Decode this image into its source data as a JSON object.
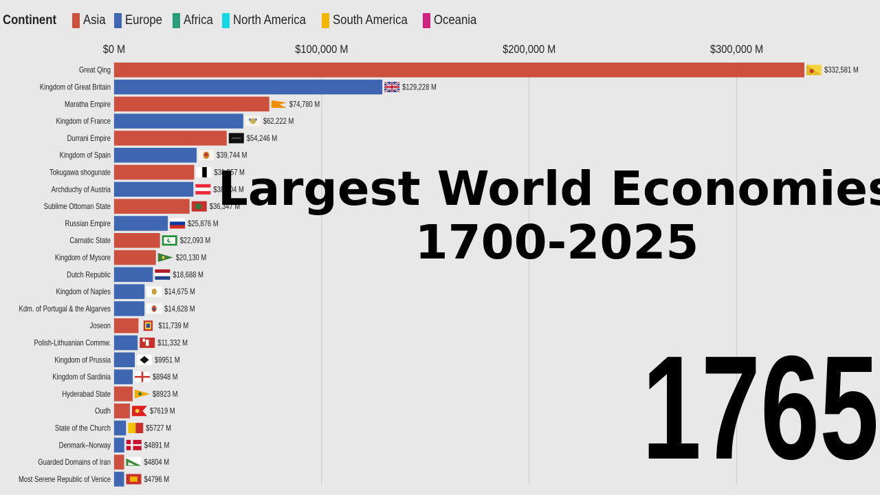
{
  "legend": {
    "title": "Continent",
    "items": [
      {
        "label": "Asia",
        "color": "#cd4f3e"
      },
      {
        "label": "Europe",
        "color": "#3f67b1"
      },
      {
        "label": "Africa",
        "color": "#2a9d78"
      },
      {
        "label": "North America",
        "color": "#16d7e6"
      },
      {
        "label": "South America",
        "color": "#f2b500"
      },
      {
        "label": "Oceania",
        "color": "#d0217e"
      }
    ]
  },
  "title_line1": "Largest World Economies",
  "title_line2": "1700-2025",
  "year": "1765",
  "chart_data": {
    "type": "bar",
    "orientation": "horizontal",
    "xlim": [
      0,
      332581
    ],
    "x_ticks": [
      {
        "value": 0,
        "label": "$0 M"
      },
      {
        "value": 100000,
        "label": "$100,000 M"
      },
      {
        "value": 200000,
        "label": "$200,000 M"
      },
      {
        "value": 300000,
        "label": "$300,000 M"
      }
    ],
    "grid": true,
    "bars": [
      {
        "category": "Great Qing",
        "value": 332581,
        "label": "$332,581 M",
        "continent": "Asia",
        "flag": "qing-flag"
      },
      {
        "category": "Kingdom of Great Britain",
        "value": 129228,
        "label": "$129,228 M",
        "continent": "Europe",
        "flag": "britain-flag"
      },
      {
        "category": "Maratha Empire",
        "value": 74780,
        "label": "$74,780 M",
        "continent": "Asia",
        "flag": "maratha-flag"
      },
      {
        "category": "Kingdom of France",
        "value": 62222,
        "label": "$62,222 M",
        "continent": "Europe",
        "flag": "france-flag"
      },
      {
        "category": "Durrani Empire",
        "value": 54246,
        "label": "$54,246 M",
        "continent": "Asia",
        "flag": "durrani-flag"
      },
      {
        "category": "Kingdom of Spain",
        "value": 39744,
        "label": "$39,744 M",
        "continent": "Europe",
        "flag": "spain-flag"
      },
      {
        "category": "Tokugawa shogunate",
        "value": 38557,
        "label": "$38,557 M",
        "continent": "Asia",
        "flag": "tokugawa-flag"
      },
      {
        "category": "Archduchy of Austria",
        "value": 38204,
        "label": "$38,204 M",
        "continent": "Europe",
        "flag": "austria-flag"
      },
      {
        "category": "Sublime Ottoman State",
        "value": 36347,
        "label": "$36,347 M",
        "continent": "Asia",
        "flag": "ottoman-flag"
      },
      {
        "category": "Russian Empire",
        "value": 25876,
        "label": "$25,876 M",
        "continent": "Europe",
        "flag": "russia-flag"
      },
      {
        "category": "Carnatic State",
        "value": 22093,
        "label": "$22,093 M",
        "continent": "Asia",
        "flag": "carnatic-flag"
      },
      {
        "category": "Kingdom of Mysore",
        "value": 20130,
        "label": "$20,130 M",
        "continent": "Asia",
        "flag": "mysore-flag"
      },
      {
        "category": "Dutch Republic",
        "value": 18688,
        "label": "$18,688 M",
        "continent": "Europe",
        "flag": "dutch-flag"
      },
      {
        "category": "Kingdom of Naples",
        "value": 14675,
        "label": "$14,675 M",
        "continent": "Europe",
        "flag": "naples-flag"
      },
      {
        "category": "Kdm. of Portugal & the Algarves",
        "value": 14628,
        "label": "$14,628 M",
        "continent": "Europe",
        "flag": "portugal-flag"
      },
      {
        "category": "Joseon",
        "value": 11739,
        "label": "$11,739 M",
        "continent": "Asia",
        "flag": "joseon-flag"
      },
      {
        "category": "Polish-Lithuanian Commw.",
        "value": 11332,
        "label": "$11,332 M",
        "continent": "Europe",
        "flag": "poland-flag"
      },
      {
        "category": "Kingdom of Prussia",
        "value": 9951,
        "label": "$9951 M",
        "continent": "Europe",
        "flag": "prussia-flag"
      },
      {
        "category": "Kingdom of Sardinia",
        "value": 8948,
        "label": "$8948 M",
        "continent": "Europe",
        "flag": "sardinia-flag"
      },
      {
        "category": "Hyderabad State",
        "value": 8923,
        "label": "$8923 M",
        "continent": "Asia",
        "flag": "hyderabad-flag"
      },
      {
        "category": "Oudh",
        "value": 7619,
        "label": "$7619 M",
        "continent": "Asia",
        "flag": "oudh-flag"
      },
      {
        "category": "State of the Church",
        "value": 5727,
        "label": "$5727 M",
        "continent": "Europe",
        "flag": "papal-flag"
      },
      {
        "category": "Denmark–Norway",
        "value": 4891,
        "label": "$4891 M",
        "continent": "Europe",
        "flag": "denmark-flag"
      },
      {
        "category": "Guarded Domains of Iran",
        "value": 4804,
        "label": "$4804 M",
        "continent": "Asia",
        "flag": "iran-flag"
      },
      {
        "category": "Most Serene Republic of Venice",
        "value": 4796,
        "label": "$4796 M",
        "continent": "Europe",
        "flag": "venice-flag"
      }
    ]
  }
}
